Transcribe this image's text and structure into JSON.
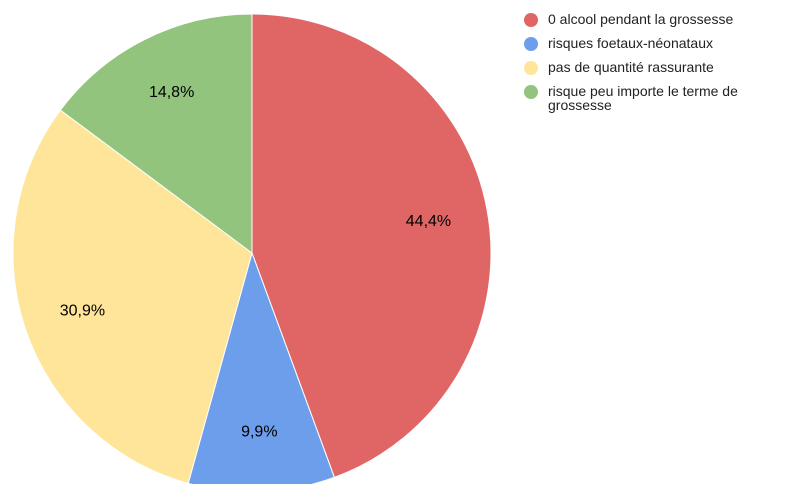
{
  "chart_data": {
    "type": "pie",
    "categories": [
      "0 alcool pendant la grossesse",
      "risques foetaux-néonataux",
      "pas de quantité rassurante",
      "risque peu importe le terme de grossesse"
    ],
    "values": [
      44.4,
      9.9,
      30.9,
      14.8
    ],
    "value_labels": [
      "44,4%",
      "9,9%",
      "30,9%",
      "14,8%"
    ],
    "colors": [
      "#e06666",
      "#6d9eeb",
      "#ffe599",
      "#93c47d"
    ],
    "legend": "right"
  }
}
